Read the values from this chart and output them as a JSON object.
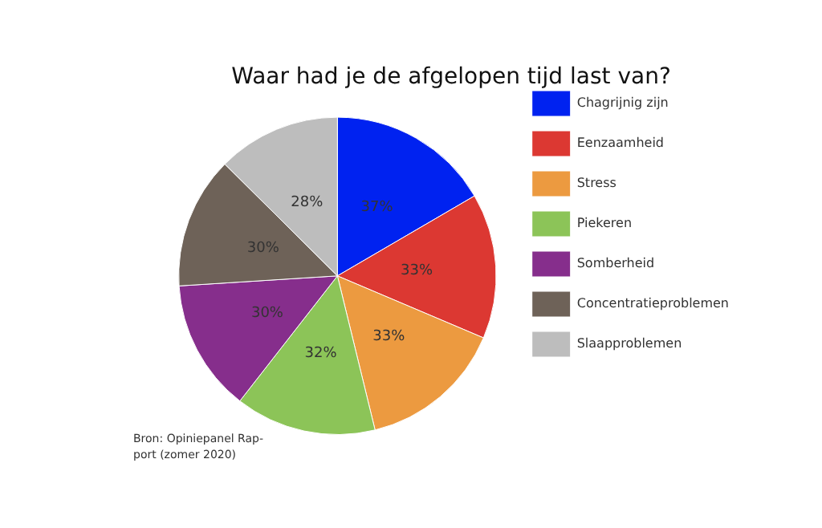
{
  "chart_data": {
    "type": "pie",
    "title": "Waar had je de afgelopen tijd last van?",
    "categories": [
      "Chagrijnig zijn",
      "Eenzaamheid",
      "Stress",
      "Piekeren",
      "Somberheid",
      "Concentratieproblemen",
      "Slaapproblemen"
    ],
    "values": [
      37,
      33,
      33,
      32,
      30,
      30,
      28
    ],
    "value_labels": [
      "37%",
      "33%",
      "33%",
      "32%",
      "30%",
      "30%",
      "28%"
    ],
    "colors": [
      "#0022f0",
      "#dc3832",
      "#ec9a40",
      "#8cc458",
      "#862e8c",
      "#6e6258",
      "#bdbdbd"
    ],
    "legend": "right",
    "annotations": [
      "Bron: Opiniepanel Rap-\nport (zomer 2020)"
    ]
  }
}
